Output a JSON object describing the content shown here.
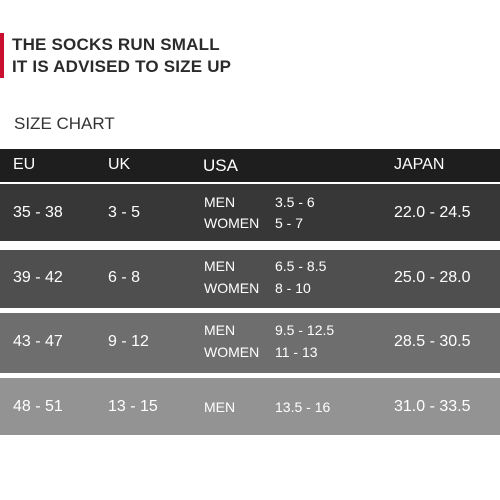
{
  "notice": {
    "line1": "THE SOCKS RUN SMALL",
    "line2": "IT IS ADVISED TO SIZE UP"
  },
  "chart_title": "SIZE CHART",
  "table": {
    "headers": [
      "EU",
      "UK",
      "USA",
      "JAPAN"
    ],
    "rows": [
      {
        "eu": "35 - 38",
        "uk": "3 - 5",
        "usa": [
          {
            "group": "MEN",
            "size": "3.5 - 6"
          },
          {
            "group": "WOMEN",
            "size": "5 - 7"
          }
        ],
        "japan": "22.0 - 24.5"
      },
      {
        "eu": "39 - 42",
        "uk": "6 - 8",
        "usa": [
          {
            "group": "MEN",
            "size": "6.5 - 8.5"
          },
          {
            "group": "WOMEN",
            "size": "8 - 10"
          }
        ],
        "japan": "25.0 - 28.0"
      },
      {
        "eu": "43 - 47",
        "uk": "9 - 12",
        "usa": [
          {
            "group": "MEN",
            "size": "9.5 - 12.5"
          },
          {
            "group": "WOMEN",
            "size": "11 - 13"
          }
        ],
        "japan": "28.5 - 30.5"
      },
      {
        "eu": "48 - 51",
        "uk": "13 - 15",
        "usa": [
          {
            "group": "MEN",
            "size": "13.5 - 16"
          }
        ],
        "japan": "31.0 - 33.5"
      }
    ]
  },
  "colors": {
    "accent": "#c8102e",
    "header_bg": "#1e1e1e",
    "row_bgs": [
      "#373737",
      "#4f4f4f",
      "#6e6e6e",
      "#939393"
    ]
  }
}
